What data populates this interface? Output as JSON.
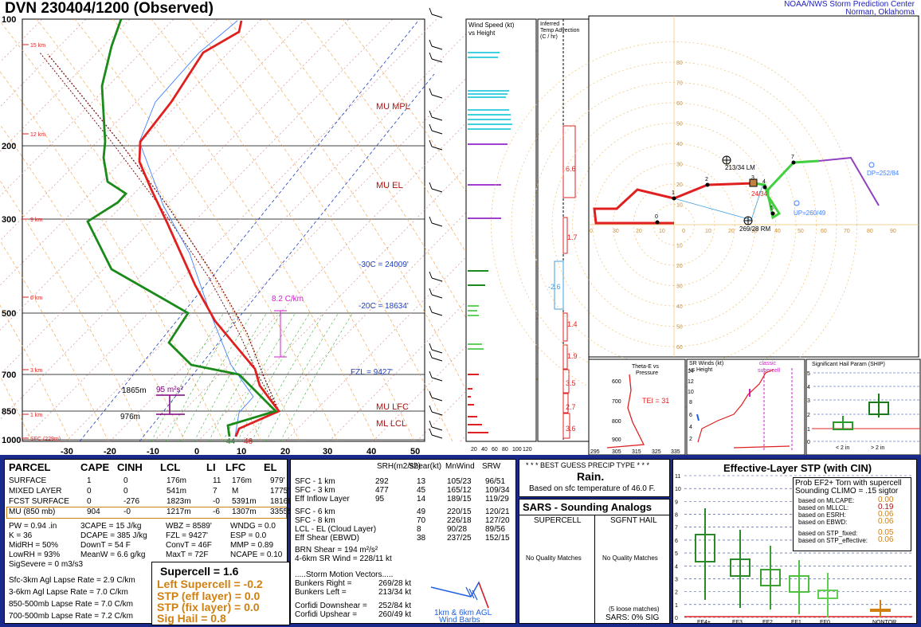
{
  "header": {
    "title": "DVN   230404/1200  (Observed)",
    "credit_line1": "NOAA/NWS Storm Prediction Center",
    "credit_line2": "Norman, Oklahoma"
  },
  "chart_data": [
    {
      "type": "line",
      "name_text": "skew-t",
      "pressure_ticks": [
        "100",
        "200",
        "300",
        "500",
        "700",
        "850",
        "1000"
      ],
      "temp_ticks": [
        "-30",
        "-20",
        "-10",
        "0",
        "10",
        "20",
        "30",
        "40",
        "50"
      ],
      "height_labels": [
        "15 km",
        "12 km",
        "9 km",
        "6 km",
        "3 km",
        "1 km",
        "SFC (229m)"
      ],
      "annotations": [
        "MU MPL",
        "MU EL",
        "-30C = 24009'",
        "-20C = 18634'",
        "FZL = 9427'",
        "MU LFC",
        "ML LCL",
        "8.2 C/km",
        "1865m",
        "95 m²s²",
        "976m",
        "44",
        "46"
      ]
    },
    {
      "type": "bar",
      "name_text": "wind-speed",
      "title_line1": "Wind Speed (kt)",
      "title_line2": "vs Height",
      "ticks": [
        "20",
        "40",
        "60",
        "80",
        "100",
        "120"
      ]
    },
    {
      "type": "bar",
      "name_text": "temp-advection",
      "title_line1": "Inferred",
      "title_line2": "Temp Advection",
      "title_line3": "(C / hr)",
      "values": [
        "6.6",
        "1.7",
        "-2.6",
        "1.4",
        "1.9",
        "3.5",
        "2.7",
        "3.6"
      ]
    },
    {
      "type": "line",
      "name_text": "hodograph",
      "ring_labels": [
        "10",
        "20",
        "30",
        "40",
        "50",
        "60",
        "70",
        "80"
      ],
      "x_labels": [
        "0",
        "30",
        "20",
        "10",
        "0",
        "10",
        "20",
        "30",
        "40",
        "50",
        "60",
        "70",
        "80",
        "90"
      ],
      "point_labels": [
        "0",
        "1",
        "2",
        "3",
        "4",
        "5",
        "7"
      ],
      "annotations": [
        "213/34 LM",
        "24/34",
        "269/28 RM",
        "UP=260/49",
        "DP=252/84"
      ]
    }
  ],
  "inset_panels": {
    "theta_title1": "Theta-E vs",
    "theta_title2": "Pressure",
    "tei": "TEI = 31",
    "theta_p": [
      "600",
      "700",
      "800",
      "900"
    ],
    "theta_x": [
      "295",
      "305",
      "315",
      "325",
      "335"
    ],
    "srw_title1": "SR Winds (kt)",
    "srw_title2": "vs Height",
    "srw_classic1": "classic",
    "srw_classic2": "supercell",
    "srw_h": [
      "14",
      "12",
      "10",
      "8",
      "6",
      "4",
      "2"
    ],
    "ship_title": "Significant Hail Param (SHIP)",
    "ship_y": [
      "5",
      "4",
      "3",
      "2",
      "1",
      "0"
    ],
    "ship_x1": "< 2 in",
    "ship_x2": "> 2 in"
  },
  "parcel_table": {
    "headers": [
      "PARCEL",
      "CAPE",
      "CINH",
      "LCL",
      "LI",
      "LFC",
      "EL"
    ],
    "rows": [
      [
        "SURFACE",
        "1",
        "0",
        "176m",
        "11",
        "176m",
        "979'"
      ],
      [
        "MIXED LAYER",
        "0",
        "0",
        "541m",
        "7",
        "M",
        "1775'"
      ],
      [
        "FCST SURFACE",
        "0",
        "-276",
        "1823m",
        "-0",
        "5391m",
        "18168'"
      ],
      [
        "MU   (850 mb)",
        "904",
        "-0",
        "1217m",
        "-6",
        "1307m",
        "33555'"
      ]
    ],
    "params_col1": [
      "PW = 0.94 .in",
      "K = 36",
      "MidRH = 50%",
      "LowRH = 93%",
      "SigSevere = 0 m3/s3"
    ],
    "params_col2": [
      "3CAPE = 15 J/kg",
      "DCAPE = 385 J/kg",
      "DownT = 54 F",
      "MeanW = 6.6 g/kg"
    ],
    "params_col3": [
      "WBZ = 8589'",
      "FZL = 9427'",
      "ConvT = 46F",
      "MaxT = 72F"
    ],
    "params_col4": [
      "WNDG = 0.0",
      "ESP = 0.0",
      "MMP = 0.89",
      "NCAPE = 0.10"
    ],
    "lapse": [
      "Sfc-3km Agl Lapse Rate =   2.9 C/km",
      "3-6km Agl Lapse Rate =    7.0 C/km",
      "850-500mb Lapse Rate =   7.0 C/km",
      "700-500mb Lapse Rate =   7.2 C/km"
    ],
    "supercell": "Supercell = 1.6",
    "left_supercell": "Left Supercell = -0.2",
    "stp_eff": "STP (eff layer) = 0.0",
    "stp_fix": "STP (fix layer) = 0.0",
    "sig_hail": "Sig Hail = 0.8"
  },
  "kinematics": {
    "headers": [
      "SRH(m2/s2)",
      "Shear(kt)",
      "MnWind",
      "SRW"
    ],
    "rows1": [
      [
        "SFC - 1 km",
        "292",
        "13",
        "105/23",
        "96/51"
      ],
      [
        "SFC - 3 km",
        "477",
        "45",
        "165/12",
        "109/34"
      ],
      [
        "Eff Inflow Layer",
        "95",
        "14",
        "189/15",
        "119/29"
      ]
    ],
    "rows2": [
      [
        "SFC - 6 km",
        "",
        "49",
        "220/15",
        "120/21"
      ],
      [
        "SFC - 8 km",
        "",
        "70",
        "226/18",
        "127/20"
      ],
      [
        "LCL - EL (Cloud Layer)",
        "",
        "8",
        "90/28",
        "89/56"
      ],
      [
        "Eff Shear (EBWD)",
        "",
        "38",
        "237/25",
        "152/15"
      ]
    ],
    "brn": "BRN Shear =  194 m²/s²",
    "sr46": "4-6km SR Wind =        228/11 kt",
    "smv": ".....Storm Motion Vectors.....",
    "motions": [
      [
        "Bunkers Right =",
        "269/28 kt"
      ],
      [
        "Bunkers Left =",
        "213/34 kt"
      ],
      [
        "Corfidi Downshear =",
        "252/84 kt"
      ],
      [
        "Corfidi Upshear =",
        "260/49 kt"
      ]
    ],
    "barb_label1": "1km & 6km AGL",
    "barb_label2": "Wind Barbs"
  },
  "precip": {
    "title": "* * * BEST GUESS PRECIP TYPE * * *",
    "value": "Rain.",
    "sub": "Based on sfc temperature of 46.0 F."
  },
  "sars": {
    "title": "SARS - Sounding Analogs",
    "col1": "SUPERCELL",
    "col2": "SGFNT HAIL",
    "nomatch1": "No Quality Matches",
    "nomatch2": "No Quality Matches",
    "loose": "(5 loose matches)",
    "sig": "SARS:  0% SIG"
  },
  "stp_panel": {
    "title": "Effective-Layer STP (with CIN)",
    "prob1": "Prob EF2+ Torn with supercell",
    "prob2": "Sounding CLIMO = .15 sigtor",
    "based": [
      [
        "based on MLCAPE:",
        "0.00"
      ],
      [
        "based on MLLCL:",
        "0.19"
      ],
      [
        "based on ESRH:",
        "0.06"
      ],
      [
        "based on EBWD:",
        "0.06"
      ],
      [
        "based on STP_fixed:",
        "0.05"
      ],
      [
        "based on STP_effective:",
        "0.06"
      ]
    ],
    "y_ticks": [
      "11",
      "10",
      "9",
      "8",
      "7",
      "6",
      "5",
      "4",
      "3",
      "2",
      "1",
      "0"
    ],
    "categories": [
      "EF4+",
      "EF3",
      "EF2",
      "EF1",
      "EF0",
      "NONTOR"
    ]
  },
  "colors": {
    "temp": "#e02020",
    "dew": "#1a8a1a",
    "frame": "#1a2a8a"
  }
}
